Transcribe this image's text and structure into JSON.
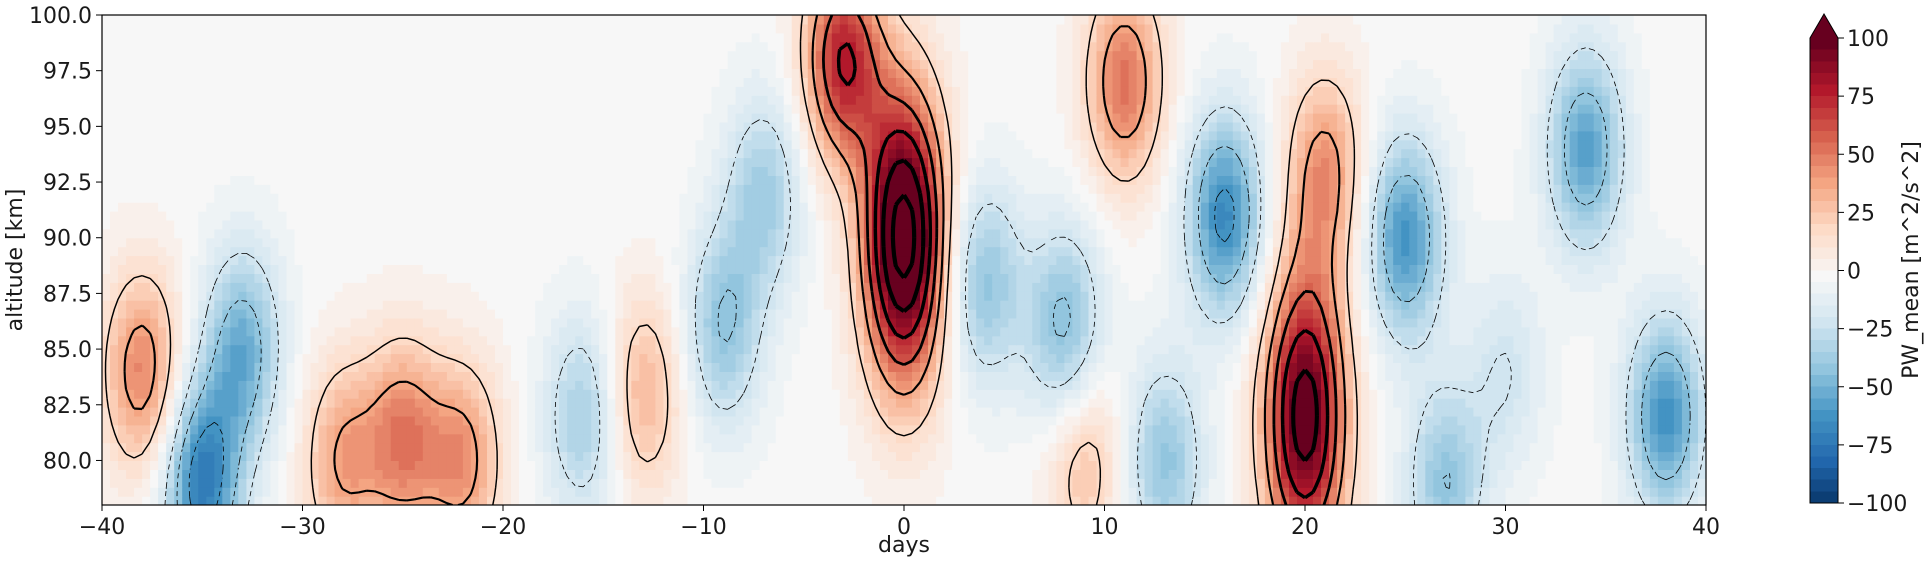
{
  "chart_data": {
    "type": "heatmap",
    "title": "",
    "xlabel": "days",
    "ylabel": "altitude [km]",
    "xlim": [
      -40,
      40
    ],
    "ylim": [
      78,
      100
    ],
    "x_ticks": [
      -40,
      -30,
      -20,
      -10,
      0,
      10,
      20,
      30,
      40
    ],
    "x_tick_labels": [
      "−40",
      "−30",
      "−20",
      "−10",
      "0",
      "10",
      "20",
      "30",
      "40"
    ],
    "y_ticks": [
      80.0,
      82.5,
      85.0,
      87.5,
      90.0,
      92.5,
      95.0,
      97.5,
      100.0
    ],
    "y_tick_labels": [
      "80.0",
      "82.5",
      "85.0",
      "87.5",
      "90.0",
      "92.5",
      "95.0",
      "97.5",
      "100.0"
    ],
    "colorbar": {
      "label": "PW_mean [m^2/s^2]",
      "vmin": -100,
      "vmax": 100,
      "extend": "max",
      "ticks": [
        -100,
        -75,
        -50,
        -25,
        0,
        25,
        50,
        75,
        100
      ],
      "tick_labels": [
        "−100",
        "−75",
        "−50",
        "−25",
        "0",
        "25",
        "50",
        "75",
        "100"
      ],
      "colormap": "RdBu_r",
      "stops": [
        "#053061",
        "#2166ac",
        "#4393c3",
        "#92c5de",
        "#d1e5f0",
        "#f7f7f7",
        "#fddbc7",
        "#f4a582",
        "#d6604d",
        "#b2182b",
        "#67001f"
      ]
    },
    "features": [
      {
        "day": 0,
        "alt": 90,
        "value": 130,
        "description": "strong positive maximum"
      },
      {
        "day": -3,
        "alt": 98,
        "value": 80
      },
      {
        "day": 20,
        "alt": 82,
        "value": 110
      },
      {
        "day": 11,
        "alt": 97,
        "value": 55
      },
      {
        "day": 21,
        "alt": 93,
        "value": 45
      },
      {
        "day": -38,
        "alt": 84,
        "value": 50
      },
      {
        "day": -25,
        "alt": 81,
        "value": 50
      },
      {
        "day": -22,
        "alt": 80,
        "value": 45
      },
      {
        "day": -28,
        "alt": 80,
        "value": 40
      },
      {
        "day": -13,
        "alt": 83,
        "value": 35
      },
      {
        "day": 30,
        "alt": 84,
        "value": -20
      },
      {
        "day": 9,
        "alt": 80,
        "value": 30
      },
      {
        "day": 16,
        "alt": 91,
        "value": -65
      },
      {
        "day": 25,
        "alt": 90,
        "value": -60
      },
      {
        "day": 34,
        "alt": 94,
        "value": -55
      },
      {
        "day": 38,
        "alt": 82,
        "value": -60
      },
      {
        "day": -35,
        "alt": 79,
        "value": -70
      },
      {
        "day": -33,
        "alt": 85,
        "value": -50
      },
      {
        "day": 4,
        "alt": 88,
        "value": -40
      },
      {
        "day": -9,
        "alt": 86,
        "value": -40
      },
      {
        "day": -16,
        "alt": 82,
        "value": -35
      },
      {
        "day": 13,
        "alt": 80,
        "value": -40
      },
      {
        "day": 27,
        "alt": 79,
        "value": -40
      },
      {
        "day": 8,
        "alt": 86,
        "value": -45
      },
      {
        "day": -7,
        "alt": 92,
        "value": -35
      }
    ]
  }
}
